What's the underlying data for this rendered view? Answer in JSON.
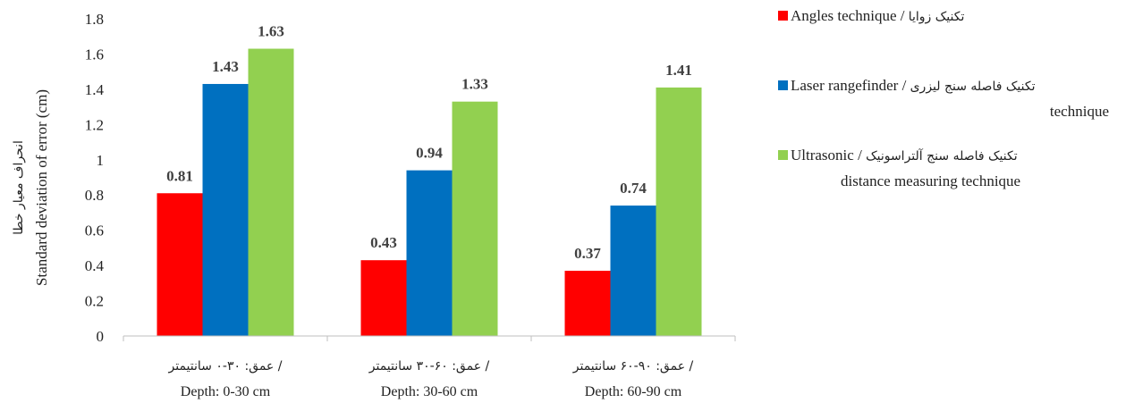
{
  "chart_data": {
    "type": "bar",
    "ylabel_fa": "انحراف معیار خطا",
    "ylabel": "Standard deviation of error (cm)",
    "ylim": [
      0,
      1.8
    ],
    "yticks": [
      "0",
      "0.2",
      "0.4",
      "0.6",
      "0.8",
      "1",
      "1.2",
      "1.4",
      "1.6",
      "1.8"
    ],
    "grid": false,
    "legend_position": "right",
    "categories": [
      {
        "fa": "عمق: ۳۰-۰ سانتیمتر /",
        "en": "Depth: 0-30 cm"
      },
      {
        "fa": "عمق: ۶۰-۳۰ سانتیمتر /",
        "en": "Depth: 30-60 cm"
      },
      {
        "fa": "عمق: ۹۰-۶۰ سانتیمتر /",
        "en": "Depth: 60-90 cm"
      }
    ],
    "series": [
      {
        "name": "Angles technique",
        "name_fa": "تکنیک زوایا",
        "color": "#ff0000",
        "values": [
          0.81,
          0.43,
          0.37
        ],
        "labels": [
          "0.81",
          "0.43",
          "0.37"
        ]
      },
      {
        "name": "Laser rangefinder technique",
        "name_fa": "تکنیک فاصله سنج لیزری",
        "color": "#0070c0",
        "values": [
          1.43,
          0.94,
          0.74
        ],
        "labels": [
          "1.43",
          "0.94",
          "0.74"
        ]
      },
      {
        "name": "Ultrasonic distance measuring technique",
        "name_fa": "تکنیک فاصله سنج آلتراسونیک",
        "color": "#92d050",
        "values": [
          1.63,
          1.33,
          1.41
        ],
        "labels": [
          "1.63",
          "1.33",
          "1.41"
        ]
      }
    ]
  },
  "legend": {
    "items": [
      {
        "en1": "Angles technique",
        "sep": " / ",
        "fa": "تکنیک زوایا",
        "en2": "",
        "color": "#ff0000"
      },
      {
        "en1": "Laser rangefinder",
        "sep": " / ",
        "fa": "تکنیک فاصله سنج لیزری",
        "en2": "technique",
        "color": "#0070c0"
      },
      {
        "en1": "Ultrasonic",
        "sep": " / ",
        "fa": "تکنیک فاصله سنج آلتراسونیک",
        "en2": "distance measuring technique",
        "color": "#92d050"
      }
    ]
  }
}
